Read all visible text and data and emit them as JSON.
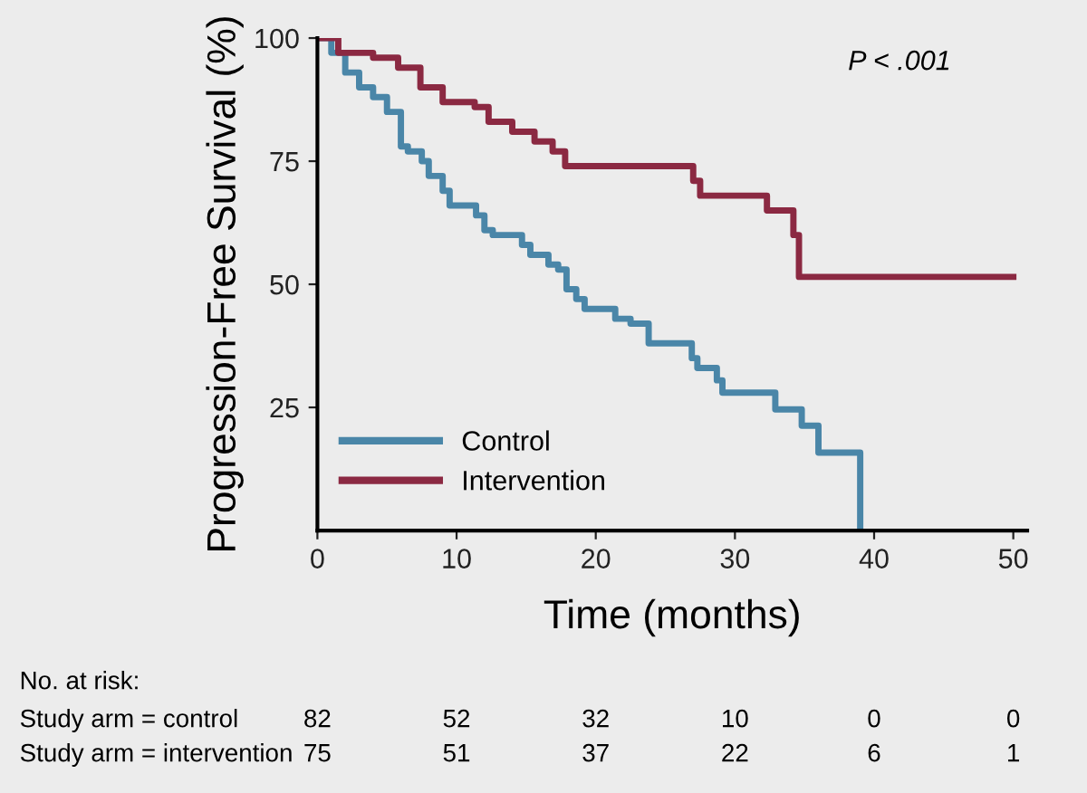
{
  "chart_data": {
    "type": "step",
    "xlabel": "Time (months)",
    "ylabel": "Progression-Free Survival (%)",
    "xlim": [
      0,
      51
    ],
    "xticks": [
      0,
      10,
      20,
      30,
      40,
      50
    ],
    "ylim": [
      0,
      100
    ],
    "yticks": [
      25,
      50,
      75,
      100
    ],
    "grid": false,
    "legend": "bottom left",
    "line_style": "solid",
    "marker": "none",
    "series": [
      {
        "name": "Control",
        "color": "#4a86a8",
        "x": [
          0,
          1,
          2,
          3,
          4,
          5,
          6,
          6.5,
          7.5,
          8,
          9,
          9.5,
          11.4,
          12,
          12.6,
          14.7,
          15.3,
          16.6,
          17.3,
          17.9,
          18.6,
          19.2,
          21.4,
          22.5,
          23.8,
          26.9,
          27.3,
          28.7,
          29.1,
          32.9,
          34.8,
          36,
          39
        ],
        "values": [
          100,
          97,
          93,
          90,
          88,
          85,
          78,
          77,
          75,
          72,
          69,
          66,
          64,
          61,
          60,
          58,
          56,
          54,
          53,
          49,
          47,
          45,
          43,
          42,
          38,
          35,
          33,
          30.5,
          28,
          24.6,
          21.3,
          15.8,
          0
        ]
      },
      {
        "name": "Intervention",
        "color": "#8b2942",
        "x": [
          0,
          1.5,
          4,
          5.8,
          7.4,
          9,
          11.3,
          12.3,
          14,
          15.6,
          16.9,
          17.8,
          27,
          27.5,
          32.3,
          34.2,
          34.6,
          50
        ],
        "values": [
          100,
          97,
          96,
          94,
          90,
          87,
          86,
          83,
          81,
          79,
          77,
          74,
          71,
          68,
          65,
          60,
          51.5,
          51.5
        ]
      }
    ],
    "annotations": [
      "P < .001",
      "No. at risk:",
      "Study arm = control",
      "82",
      "52",
      "32",
      "10",
      "0",
      "0",
      "Study arm = intervention",
      "75",
      "51",
      "37",
      "22",
      "6",
      "1"
    ]
  }
}
